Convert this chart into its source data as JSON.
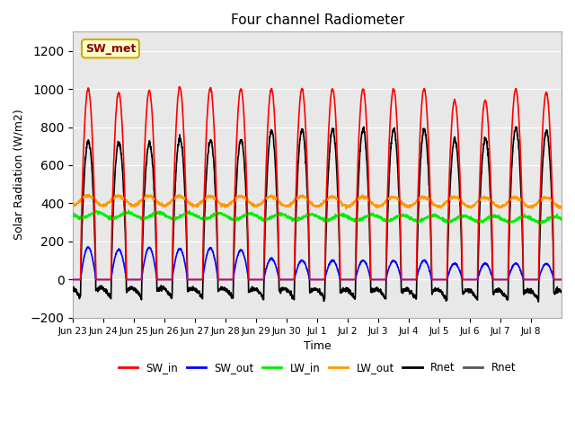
{
  "title": "Four channel Radiometer",
  "xlabel": "Time",
  "ylabel": "Solar Radiation (W/m2)",
  "ylim": [
    -200,
    1300
  ],
  "yticks": [
    -200,
    0,
    200,
    400,
    600,
    800,
    1000,
    1200
  ],
  "fig_bg_color": "#ffffff",
  "plot_bg_color": "#e8e8e8",
  "annotation_text": "SW_met",
  "annotation_color": "#8b0000",
  "annotation_bg": "#ffffcc",
  "annotation_border": "#ccaa00",
  "num_days": 16,
  "x_tick_labels": [
    "Jun 23",
    "Jun 24",
    "Jun 25",
    "Jun 26",
    "Jun 27",
    "Jun 28",
    "Jun 29",
    "Jun 30",
    "Jul 1",
    "Jul 2",
    "Jul 3",
    "Jul 4",
    "Jul 5",
    "Jul 6",
    "Jul 7",
    "Jul 8"
  ],
  "SW_in_color": "#ff0000",
  "SW_out_color": "#0000ff",
  "LW_in_color": "#00ee00",
  "LW_out_color": "#ff9900",
  "Rnet_color": "#000000",
  "Rnet2_color": "#000000",
  "legend_labels": [
    "SW_in",
    "SW_out",
    "LW_in",
    "LW_out",
    "Rnet",
    "Rnet"
  ],
  "line_width": 1.2
}
